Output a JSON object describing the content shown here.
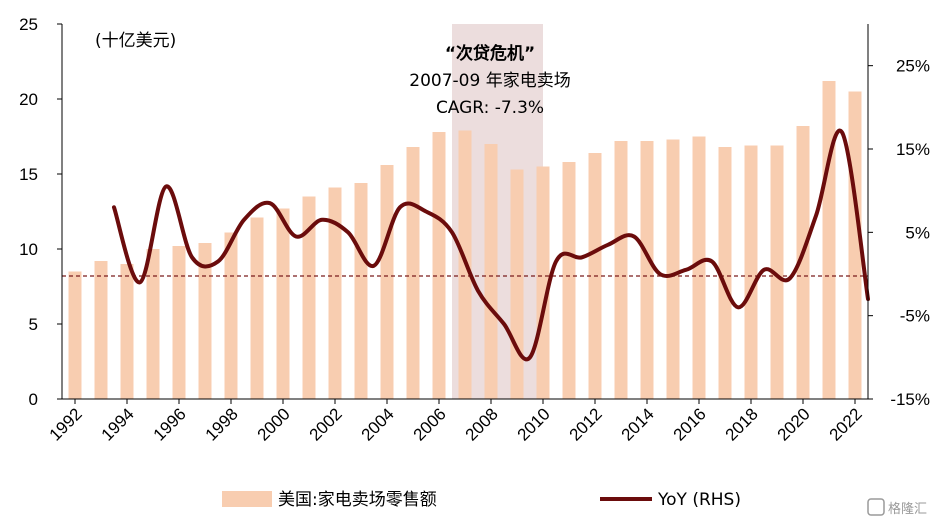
{
  "chart_data": {
    "type": "bar+line",
    "unit_label": "(十亿美元)",
    "annotation": {
      "title": "“次贷危机”",
      "line1": "2007-09 年家电卖场",
      "line2": "CAGR: -7.3%",
      "shade_from": 2007,
      "shade_to": 2009.5
    },
    "bar_series": {
      "name": "美国:家电卖场零售额",
      "color": "#f8cdb0",
      "years": [
        1992,
        1993,
        1994,
        1995,
        1996,
        1997,
        1998,
        1999,
        2000,
        2001,
        2002,
        2003,
        2004,
        2005,
        2006,
        2007,
        2008,
        2009,
        2010,
        2011,
        2012,
        2013,
        2014,
        2015,
        2016,
        2017,
        2018,
        2019,
        2020,
        2021,
        2022
      ],
      "values": [
        8.5,
        9.2,
        9.0,
        10.0,
        10.2,
        10.4,
        11.1,
        12.1,
        12.7,
        13.5,
        14.1,
        14.4,
        15.6,
        16.8,
        17.8,
        17.9,
        17.0,
        15.3,
        15.5,
        15.8,
        16.4,
        17.2,
        17.2,
        17.3,
        17.5,
        16.8,
        16.9,
        16.9,
        18.2,
        21.2,
        20.5
      ]
    },
    "line_series": {
      "name": "YoY (RHS)",
      "color": "#6b0c0c",
      "x": [
        1993.5,
        1994.5,
        1995.5,
        1996.5,
        1997.5,
        1998.5,
        1999.5,
        2000.5,
        2001.5,
        2002.5,
        2003.5,
        2004.5,
        2005.5,
        2006.5,
        2007.5,
        2008.5,
        2009.5,
        2010.5,
        2011.5,
        2012.5,
        2013.5,
        2014.5,
        2015.5,
        2016.5,
        2017.5,
        2018.5,
        2019.5,
        2020.5,
        2021.5,
        2022.5
      ],
      "values": [
        8.0,
        -1.0,
        10.5,
        2.0,
        1.5,
        6.5,
        8.5,
        4.5,
        6.5,
        5.0,
        1.0,
        8.0,
        7.5,
        5.0,
        -2.0,
        -6.0,
        -10.0,
        1.5,
        2.0,
        3.5,
        4.5,
        0.0,
        0.5,
        1.5,
        -4.0,
        0.5,
        -0.5,
        7.0,
        17.0,
        -3.0
      ]
    },
    "reference_line_left": 8.2,
    "left_axis": {
      "min": 0,
      "max": 25,
      "ticks": [
        0,
        5,
        10,
        15,
        20,
        25
      ]
    },
    "right_axis": {
      "min": -15,
      "max": 30,
      "ticks": [
        -15,
        -5,
        5,
        15,
        25
      ],
      "tick_labels": [
        "-15%",
        "-5%",
        "5%",
        "15%",
        "25%"
      ]
    },
    "x_axis": {
      "tick_labels": [
        "1992",
        "1994",
        "1996",
        "1998",
        "2000",
        "2002",
        "2004",
        "2006",
        "2008",
        "2010",
        "2012",
        "2014",
        "2016",
        "2018",
        "2020",
        "2022"
      ]
    },
    "legend_placement": "bottom"
  },
  "watermark": {
    "text": "格隆汇"
  }
}
